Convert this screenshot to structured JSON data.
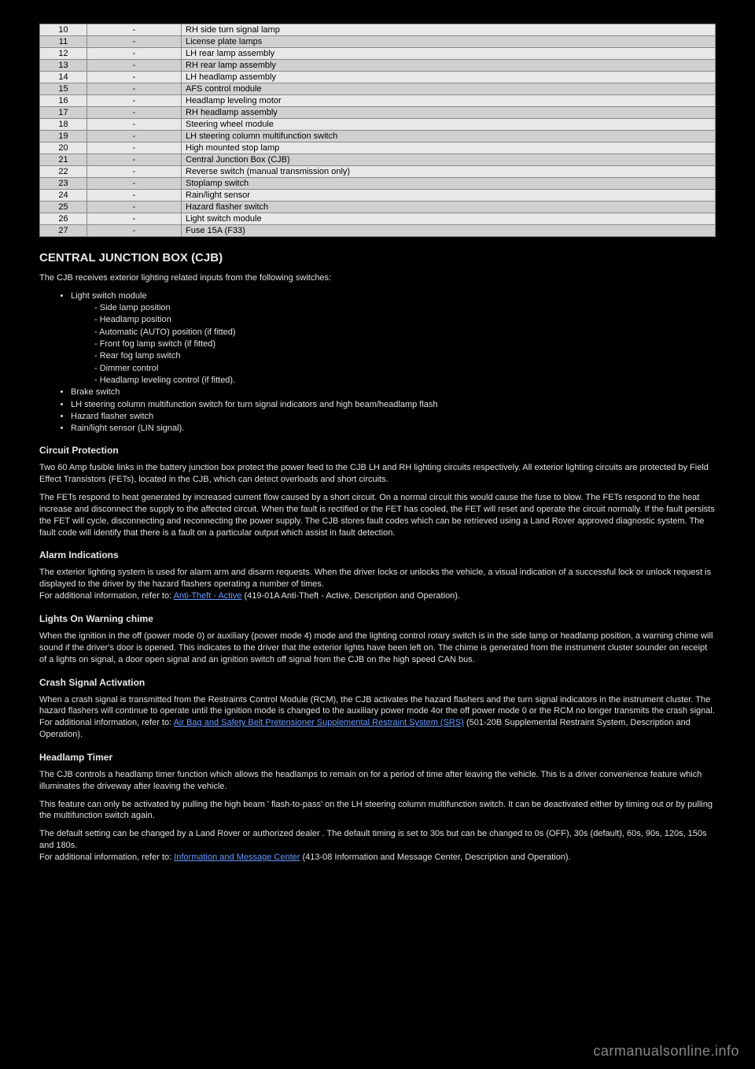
{
  "table": {
    "rows": [
      [
        "10",
        "-",
        "RH side turn signal lamp"
      ],
      [
        "11",
        "-",
        "License plate lamps"
      ],
      [
        "12",
        "-",
        "LH rear lamp assembly"
      ],
      [
        "13",
        "-",
        "RH rear lamp assembly"
      ],
      [
        "14",
        "-",
        "LH headlamp assembly"
      ],
      [
        "15",
        "-",
        "AFS control module"
      ],
      [
        "16",
        "-",
        "Headlamp leveling motor"
      ],
      [
        "17",
        "-",
        "RH headlamp assembly"
      ],
      [
        "18",
        "-",
        "Steering wheel module"
      ],
      [
        "19",
        "-",
        "LH steering column multifunction switch"
      ],
      [
        "20",
        "-",
        "High mounted stop lamp"
      ],
      [
        "21",
        "-",
        "Central Junction Box (CJB)"
      ],
      [
        "22",
        "-",
        "Reverse switch (manual transmission only)"
      ],
      [
        "23",
        "-",
        "Stoplamp switch"
      ],
      [
        "24",
        "-",
        "Rain/light sensor"
      ],
      [
        "25",
        "-",
        "Hazard flasher switch"
      ],
      [
        "26",
        "-",
        "Light switch module"
      ],
      [
        "27",
        "-",
        "Fuse 15A (F33)"
      ]
    ]
  },
  "h2": "CENTRAL JUNCTION BOX (CJB)",
  "intro": "The CJB receives exterior lighting related inputs from the following switches:",
  "list": {
    "item1": "Light switch module",
    "sub": [
      "Side lamp position",
      "Headlamp position",
      "Automatic (AUTO) position (if fitted)",
      "Front fog lamp switch (if fitted)",
      "Rear fog lamp switch",
      "Dimmer control",
      "Headlamp leveling control (if fitted)."
    ],
    "item2": "Brake switch",
    "item3": "LH steering column multifunction switch for turn signal indicators and high beam/headlamp flash",
    "item4": "Hazard flasher switch",
    "item5": "Rain/light sensor (LIN signal)."
  },
  "sections": {
    "circuit": {
      "title": "Circuit Protection",
      "p1": "Two 60 Amp fusible links in the battery junction box protect the power feed to the CJB LH and RH lighting circuits respectively. All exterior lighting circuits are protected by Field Effect Transistors (FETs), located in the CJB, which can detect overloads and short circuits.",
      "p2": "The FETs respond to heat generated by increased current flow caused by a short circuit. On a normal circuit this would cause the fuse to blow. The FETs respond to the heat increase and disconnect the supply to the affected circuit. When the fault is rectified or the FET has cooled, the FET will reset and operate the circuit normally. If the fault persists the FET will cycle, disconnecting and reconnecting the power supply. The CJB stores fault codes which can be retrieved using a Land Rover approved diagnostic system. The fault code will identify that there is a fault on a particular output which assist in fault detection."
    },
    "alarm": {
      "title": "Alarm Indications",
      "p1": "The exterior lighting system is used for alarm arm and disarm requests. When the driver locks or unlocks the vehicle, a visual indication of a successful lock or unlock request is displayed to the driver by the hazard flashers operating a number of times.",
      "p2a": "For additional information, refer to: ",
      "link": "Anti-Theft - Active",
      "p2b": " (419-01A Anti-Theft - Active, Description and Operation)."
    },
    "lights": {
      "title": "Lights On Warning chime",
      "p1": "When the ignition in the off (power mode 0) or auxiliary (power mode 4) mode and the lighting control rotary switch is in the side lamp or headlamp position, a warning chime will sound if the driver's door is opened. This indicates to the driver that the exterior lights have been left on. The chime is generated from the instrument cluster sounder on receipt of a lights on signal, a door open signal and an ignition switch off signal from the CJB on the high speed CAN bus."
    },
    "crash": {
      "title": "Crash Signal Activation",
      "p1": "When a crash signal is transmitted from the Restraints Control Module (RCM), the CJB activates the hazard flashers and the turn signal indicators in the instrument cluster. The hazard flashers will continue to operate until the ignition mode is changed to the auxiliary power mode 4or the off power mode 0 or the RCM no longer transmits the crash signal.",
      "p2a": "For additional information, refer to: ",
      "link": "Air Bag and Safety Belt Pretensioner Supplemental Restraint System (SRS)",
      "p2b": " (501-20B Supplemental Restraint System, Description and Operation)."
    },
    "timer": {
      "title": "Headlamp Timer",
      "p1": "The CJB controls a headlamp timer function which allows the headlamps to remain on for a period of time after leaving the vehicle. This is a driver convenience feature which illuminates the driveway after leaving the vehicle.",
      "p2": "This feature can only be activated by pulling the high beam ' flash-to-pass' on the LH steering column multifunction switch. It can be deactivated either by timing out or by pulling the multifunction switch again.",
      "p3": "The default setting can be changed by a Land Rover or authorized dealer . The default timing is set to 30s but can be changed to 0s (OFF), 30s (default), 60s, 90s, 120s, 150s and 180s.",
      "p4a": "For additional information, refer to: ",
      "link": "Information and Message Center",
      "p4b": " (413-08 Information and Message Center, Description and Operation)."
    }
  },
  "watermark": "carmanualsonline.info"
}
